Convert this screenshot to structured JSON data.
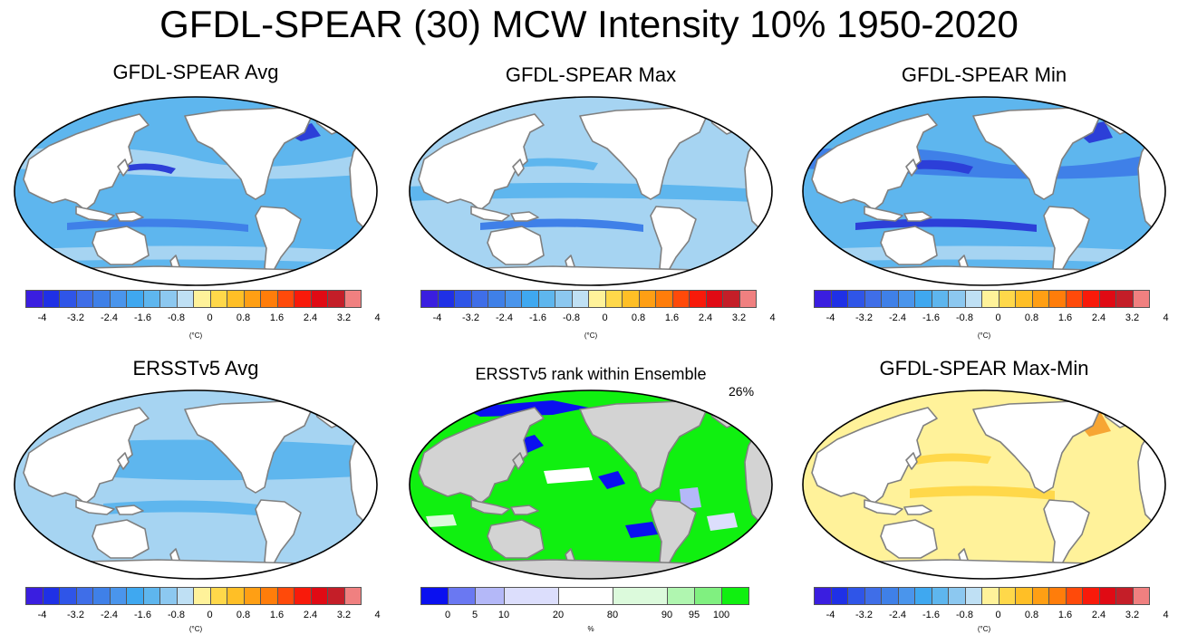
{
  "figure": {
    "title": "GFDL-SPEAR (30) MCW Intensity 10% 1950-2020"
  },
  "colors": {
    "land": "#ffffff",
    "land_gray": "#d3d3d3",
    "coast": "#808080",
    "border": "#000000",
    "ocean_light": "#a6d4f2",
    "ocean_mid": "#5eb6ee",
    "ocean_dark": "#3f80e8",
    "ocean_deep": "#2c3fd8",
    "yellow_light": "#fff29a",
    "yellow_mid": "#ffd84a",
    "orange": "#f7a634"
  },
  "temp_scale": {
    "colors": [
      "#3a1ee0",
      "#1f30e6",
      "#2f55e8",
      "#3f6ee8",
      "#3f80e8",
      "#4a95ec",
      "#3fa8f0",
      "#5eb6ee",
      "#8cc8f0",
      "#bfe0f4",
      "#fff29a",
      "#ffd84a",
      "#ffbf26",
      "#ff9f14",
      "#ff7d0a",
      "#ff4a0a",
      "#f81a0a",
      "#e00a14",
      "#c41e28",
      "#f08080"
    ],
    "tick_values": [
      -4,
      -3.2,
      -2.4,
      -1.6,
      -0.8,
      0,
      0.8,
      1.6,
      2.4,
      3.2,
      4
    ],
    "tick_labels": [
      "-4",
      "-3.2",
      "-2.4",
      "-1.6",
      "-0.8",
      "0",
      "0.8",
      "1.6",
      "2.4",
      "3.2",
      "4"
    ],
    "unit": "(°C)"
  },
  "rank_scale": {
    "colors": [
      "#0a10f0",
      "#6a78f2",
      "#b4b8f8",
      "#dcdefc",
      "#ffffff",
      "#dcfadc",
      "#b0f6b0",
      "#80f080",
      "#10f010"
    ],
    "boundaries": [
      0,
      5,
      10,
      20,
      80,
      90,
      95,
      100
    ],
    "tick_labels": [
      "0",
      "5",
      "10",
      "20",
      "80",
      "90",
      "95",
      "100"
    ],
    "unit": "%"
  },
  "chart_data": [
    {
      "type": "heatmap",
      "title": "GFDL-SPEAR Avg",
      "variable": "MCW intensity",
      "units": "°C",
      "colorbar_range": [
        -4,
        4
      ],
      "dominant_range": [
        -1.6,
        -0.4
      ]
    },
    {
      "type": "heatmap",
      "title": "GFDL-SPEAR Max",
      "variable": "MCW intensity",
      "units": "°C",
      "colorbar_range": [
        -4,
        4
      ],
      "dominant_range": [
        -1.2,
        -0.4
      ]
    },
    {
      "type": "heatmap",
      "title": "GFDL-SPEAR Min",
      "variable": "MCW intensity",
      "units": "°C",
      "colorbar_range": [
        -4,
        4
      ],
      "dominant_range": [
        -2.4,
        -0.8
      ]
    },
    {
      "type": "heatmap",
      "title": "ERSSTv5 Avg",
      "variable": "MCW intensity",
      "units": "°C",
      "colorbar_range": [
        -4,
        4
      ],
      "dominant_range": [
        -1.2,
        -0.4
      ]
    },
    {
      "type": "heatmap",
      "title": "ERSSTv5 rank within Ensemble",
      "units": "%",
      "annotation": "26%",
      "colorbar_boundaries": [
        0,
        5,
        10,
        20,
        80,
        90,
        95,
        100
      ]
    },
    {
      "type": "heatmap",
      "title": "GFDL-SPEAR Max-Min",
      "variable": "MCW intensity",
      "units": "°C",
      "colorbar_range": [
        -4,
        4
      ],
      "dominant_range": [
        0,
        1.6
      ]
    }
  ]
}
